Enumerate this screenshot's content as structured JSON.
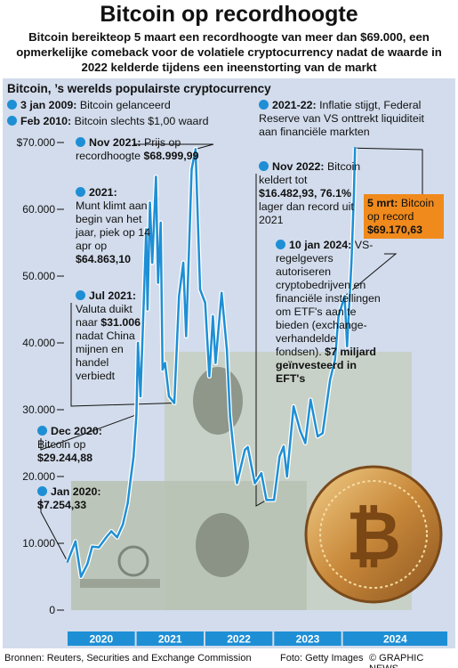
{
  "title": "Bitcoin op recordhoogte",
  "subtitle": "Bitcoin bereikteop 5 maart een recordhoogte van meer dan $69.000, een opmerkelijke comeback voor de volatiele cryptocurrency nadat de waarde in 2022 kelderde tijdens een ineenstorting van de markt",
  "panel_heading": "Bitcoin, ’s werelds populairste cryptocurrency",
  "annotations": {
    "a2009": {
      "date": "3 jan 2009:",
      "text": "Bitcoin gelanceerd"
    },
    "a2010": {
      "date": "Feb 2010:",
      "text": "Bitcoin slechts $1,00 waard"
    },
    "nov2021": {
      "date": "Nov 2021:",
      "text": "Prijs op recordhoogte",
      "value": "$68.999,99"
    },
    "y2021": {
      "date": "2021:",
      "text": "Munt klimt aan begin van het jaar, piek op 14 apr op",
      "value": "$64.863,10"
    },
    "jul2021": {
      "date": "Jul 2021:",
      "text1": "Valuta duikt naar",
      "value": "$31.006",
      "text2": "nadat China mijnen en handel verbiedt"
    },
    "dec2020": {
      "date": "Dec 2020:",
      "text": "Bitcoin op",
      "value": "$29.244,88"
    },
    "jan2020": {
      "date": "Jan 2020:",
      "value": "$7.254,33"
    },
    "y2122": {
      "date": "2021-22:",
      "text": "Inflatie stijgt, Federal Reserve van VS onttrekt liquiditeit aan financiële markten"
    },
    "nov2022": {
      "date": "Nov 2022:",
      "text1": "Bitcoin keldert tot",
      "value": "$16.482,93, 76.1%",
      "text2": "lager dan record uit 2021"
    },
    "jan2024": {
      "date": "10 jan 2024:",
      "text": "VS-regelgevers autoriseren cryptobedrijven en financiële instellingen om ETF's aan te bieden (exchange-verhandelde fondsen).",
      "value": "$7 miljard",
      "text2": "geïnvesteerd in EFT's"
    }
  },
  "record_box": {
    "date": "5 mrt:",
    "text": "Bitcoin op record",
    "value": "$69.170,63"
  },
  "footer": {
    "sources": "Bronnen: Reuters, Securities and Exchange Commission",
    "photo": "Foto: Getty Images",
    "credit": "© GRAPHIC NEWS"
  },
  "colors": {
    "line": "#1e8fd5",
    "line_glow": "#ffffff",
    "year_bar": "#1e8fd5",
    "record_box": "#f08a1c",
    "panel": "#d2dcec"
  },
  "chart_data": {
    "type": "line",
    "title": "Bitcoin op recordhoogte",
    "xlabel": "",
    "ylabel": "",
    "ylim": [
      0,
      70000
    ],
    "y_ticks": [
      0,
      10000,
      20000,
      30000,
      40000,
      50000,
      60000,
      70000
    ],
    "y_tick_labels": [
      "0",
      "10.000",
      "20.000",
      "30.000",
      "40.000",
      "50.000",
      "60.000",
      "$70.000"
    ],
    "x_years": [
      "2020",
      "2021",
      "2022",
      "2023",
      "2024"
    ],
    "series": [
      {
        "values": [
          [
            "2020-01-01",
            7254
          ],
          [
            "2020-02-12",
            10300
          ],
          [
            "2020-03-12",
            5000
          ],
          [
            "2020-04-15",
            6900
          ],
          [
            "2020-05-10",
            9500
          ],
          [
            "2020-06-15",
            9400
          ],
          [
            "2020-07-27",
            11000
          ],
          [
            "2020-08-20",
            11800
          ],
          [
            "2020-09-20",
            10900
          ],
          [
            "2020-10-20",
            12800
          ],
          [
            "2020-11-15",
            16000
          ],
          [
            "2020-11-30",
            19500
          ],
          [
            "2020-12-16",
            23000
          ],
          [
            "2020-12-31",
            29245
          ],
          [
            "2021-01-08",
            40000
          ],
          [
            "2021-01-22",
            32000
          ],
          [
            "2021-02-08",
            46000
          ],
          [
            "2021-02-21",
            57000
          ],
          [
            "2021-02-28",
            45000
          ],
          [
            "2021-03-13",
            61000
          ],
          [
            "2021-03-25",
            52000
          ],
          [
            "2021-04-14",
            64863
          ],
          [
            "2021-04-25",
            49000
          ],
          [
            "2021-05-09",
            58000
          ],
          [
            "2021-05-19",
            36000
          ],
          [
            "2021-06-01",
            37000
          ],
          [
            "2021-06-22",
            32000
          ],
          [
            "2021-07-20",
            31006
          ],
          [
            "2021-08-14",
            47000
          ],
          [
            "2021-09-06",
            52000
          ],
          [
            "2021-09-21",
            41000
          ],
          [
            "2021-10-20",
            66000
          ],
          [
            "2021-11-10",
            68999
          ],
          [
            "2021-12-04",
            48000
          ],
          [
            "2021-12-31",
            46000
          ],
          [
            "2022-01-22",
            35000
          ],
          [
            "2022-02-10",
            44000
          ],
          [
            "2022-02-24",
            37000
          ],
          [
            "2022-03-28",
            47500
          ],
          [
            "2022-04-25",
            39000
          ],
          [
            "2022-05-12",
            29000
          ],
          [
            "2022-06-18",
            19000
          ],
          [
            "2022-07-30",
            24000
          ],
          [
            "2022-08-14",
            24400
          ],
          [
            "2022-09-20",
            19000
          ],
          [
            "2022-10-25",
            20500
          ],
          [
            "2022-11-21",
            16483
          ],
          [
            "2022-12-31",
            16500
          ],
          [
            "2023-01-30",
            23000
          ],
          [
            "2023-02-20",
            24500
          ],
          [
            "2023-03-10",
            20000
          ],
          [
            "2023-04-14",
            30500
          ],
          [
            "2023-05-20",
            26800
          ],
          [
            "2023-06-15",
            25000
          ],
          [
            "2023-07-13",
            31500
          ],
          [
            "2023-08-20",
            26000
          ],
          [
            "2023-09-15",
            26500
          ],
          [
            "2023-10-25",
            34500
          ],
          [
            "2023-11-20",
            37500
          ],
          [
            "2023-12-08",
            44000
          ],
          [
            "2024-01-10",
            47000
          ],
          [
            "2024-01-23",
            39500
          ],
          [
            "2024-02-15",
            52000
          ],
          [
            "2024-02-28",
            62000
          ],
          [
            "2024-03-05",
            69171
          ]
        ]
      }
    ]
  }
}
